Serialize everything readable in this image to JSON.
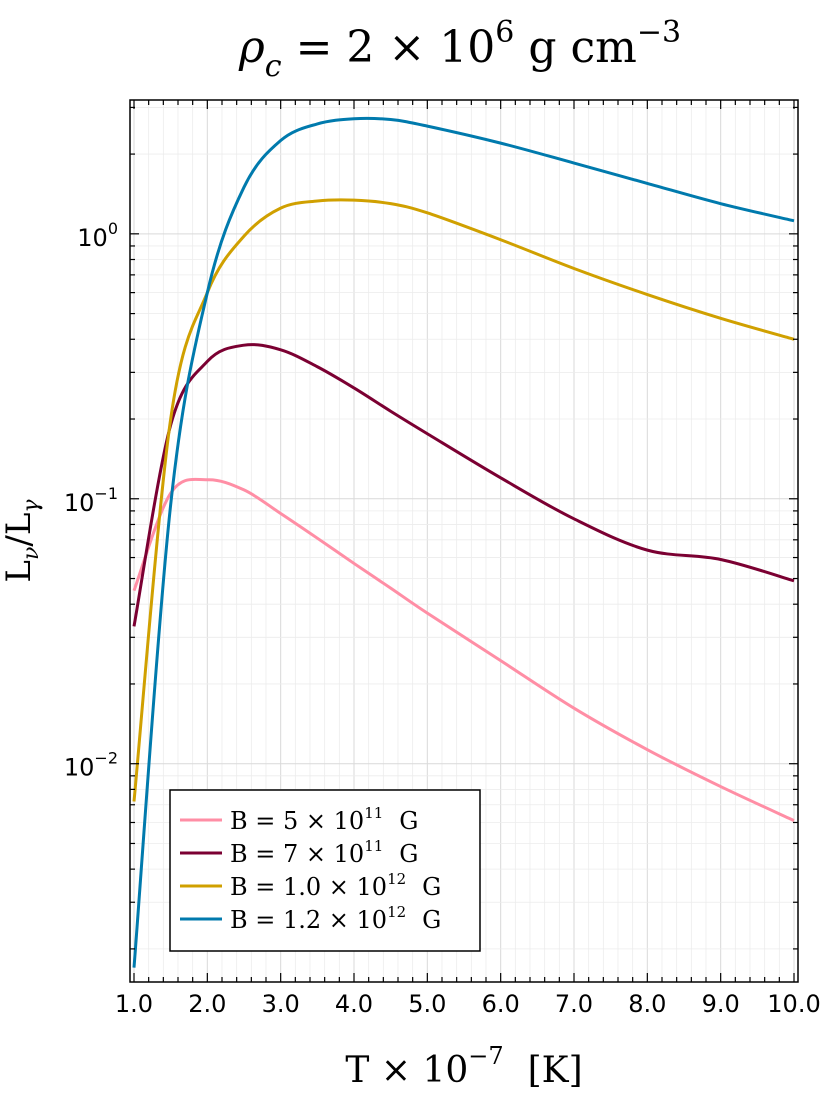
{
  "chart_data": {
    "type": "line",
    "title": "ρ_c = 2 × 10^6 g cm^-3",
    "title_parts": {
      "lhs": "ρ",
      "sub": "c",
      "mid": " = 2 × 10",
      "exp": "6",
      "unit1": " g cm",
      "unit_exp": "−3"
    },
    "xlabel": "T × 10^-7   [K]",
    "xlabel_parts": {
      "base": "T × 10",
      "exp": "−7",
      "unit": "[K]"
    },
    "ylabel": "L_ν/L_γ",
    "ylabel_parts": {
      "a": "L",
      "a_sub": "ν",
      "slash": "/",
      "b": "L",
      "b_sub": "γ"
    },
    "xlim": [
      1.0,
      10.0
    ],
    "ylim": [
      0.0015,
      3.2
    ],
    "yscale": "log",
    "grid": true,
    "legend_position": "bottom-left",
    "x_ticks": [
      1,
      2,
      3,
      4,
      5,
      6,
      7,
      8,
      9,
      10
    ],
    "x_tick_labels": [
      "1.0",
      "2.0",
      "3.0",
      "4.0",
      "5.0",
      "6.0",
      "7.0",
      "8.0",
      "9.0",
      "10.0"
    ],
    "y_ticks": [
      {
        "value": 1,
        "base": "10",
        "exp": "0"
      },
      {
        "value": 0.1,
        "base": "10",
        "exp": "−1"
      },
      {
        "value": 0.01,
        "base": "10",
        "exp": "−2"
      }
    ],
    "x": [
      1.0,
      1.5,
      2.0,
      2.5,
      3.0,
      3.5,
      4.0,
      4.5,
      5.0,
      6.0,
      7.0,
      8.0,
      9.0,
      10.0
    ],
    "series": [
      {
        "name": "B = 5 × 10^11 G",
        "label_parts": [
          "B = 5 × 10",
          "11",
          "G"
        ],
        "color": "#ff8ea5",
        "values": [
          0.045,
          0.105,
          0.118,
          0.108,
          0.088,
          0.071,
          0.057,
          0.046,
          0.037,
          0.0245,
          0.0162,
          0.0113,
          0.0082,
          0.0061
        ]
      },
      {
        "name": "B = 7 × 10^11 G",
        "label_parts": [
          "B = 7 × 10",
          "11",
          "G"
        ],
        "color": "#7b0032",
        "values": [
          0.033,
          0.19,
          0.33,
          0.38,
          0.365,
          0.315,
          0.262,
          0.214,
          0.176,
          0.12,
          0.084,
          0.064,
          0.059,
          0.049
        ]
      },
      {
        "name": "B = 1.0 × 10^12 G",
        "label_parts": [
          "B = 1.0 × 10",
          "12",
          "G"
        ],
        "color": "#d0a000",
        "values": [
          0.0072,
          0.2,
          0.6,
          0.98,
          1.25,
          1.33,
          1.34,
          1.3,
          1.2,
          0.95,
          0.74,
          0.59,
          0.48,
          0.4
        ]
      },
      {
        "name": "B = 1.2 × 10^12 G",
        "label_parts": [
          "B = 1.2 × 10",
          "12",
          "G"
        ],
        "color": "#007aad",
        "values": [
          0.0017,
          0.095,
          0.6,
          1.5,
          2.25,
          2.6,
          2.72,
          2.7,
          2.55,
          2.2,
          1.85,
          1.55,
          1.3,
          1.12
        ]
      }
    ]
  }
}
